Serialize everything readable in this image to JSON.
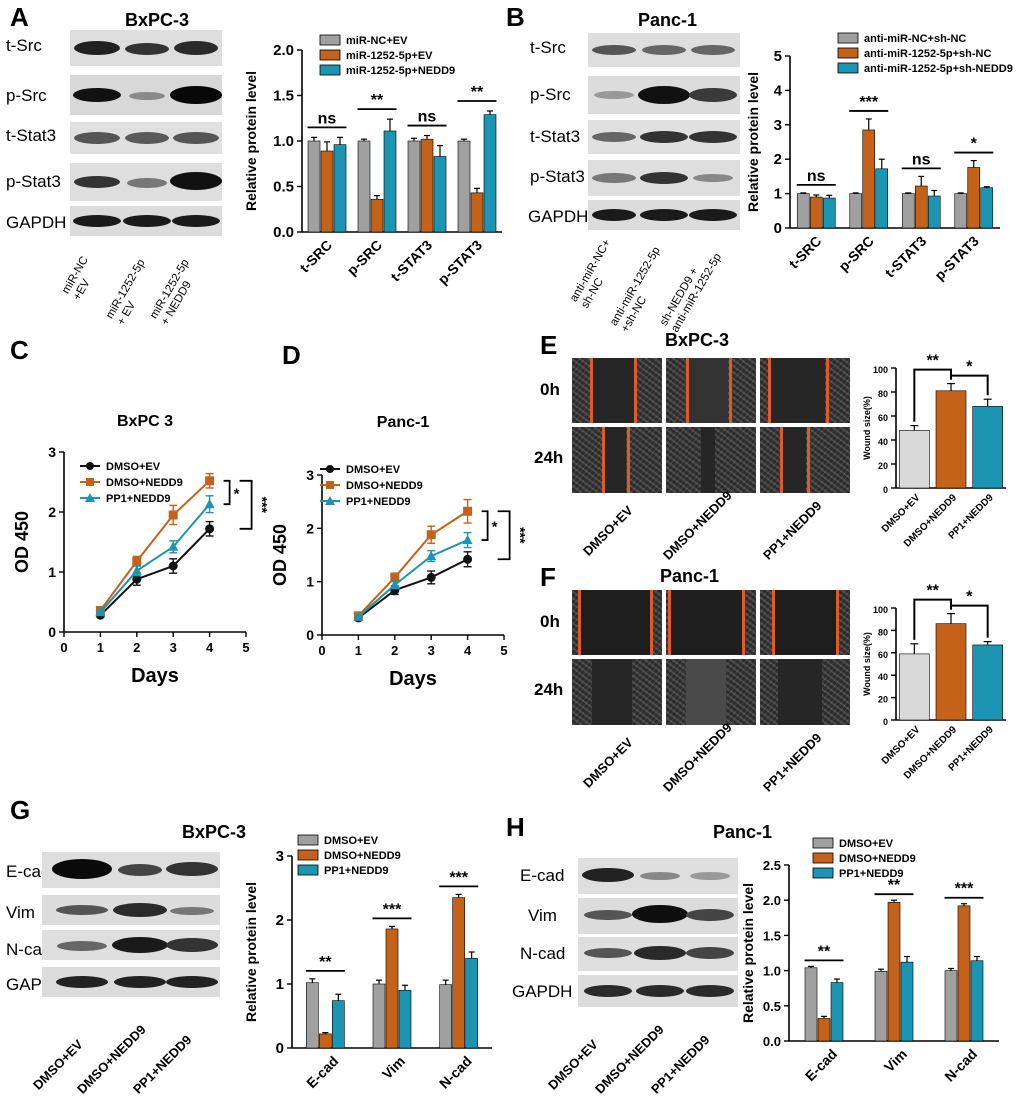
{
  "panels": {
    "A": {
      "letter": "A",
      "title": "BxPC-3",
      "blot_rows": [
        "t-Src",
        "p-Src",
        "t-Stat3",
        "p-Stat3",
        "GAPDH"
      ],
      "lanes": [
        {
          "line1": "miR-NC",
          "line2": "+EV"
        },
        {
          "line1": "miR-1252-5p",
          "line2": "+ EV"
        },
        {
          "line1": "miR-1252-5p",
          "line2": "+ NEDD9"
        }
      ]
    },
    "B": {
      "letter": "B",
      "title": "Panc-1",
      "blot_rows": [
        "t-Src",
        "p-Src",
        "t-Stat3",
        "p-Stat3",
        "GAPDH"
      ],
      "lanes": [
        {
          "line1": "anti-miR-NC+",
          "line2": "sh-NC"
        },
        {
          "line1": "anti-miR-1252-5p",
          "line2": "+sh-NC"
        },
        {
          "line1": "sh-NEDD9 +",
          "line2": "anti-miR-1252-5p"
        }
      ]
    },
    "C": {
      "letter": "C"
    },
    "D": {
      "letter": "D"
    },
    "E": {
      "letter": "E",
      "title": "BxPC-3",
      "rows": [
        "0h",
        "24h"
      ],
      "groups": [
        "DMSO+EV",
        "DMSO+NEDD9",
        "PP1+NEDD9"
      ]
    },
    "F": {
      "letter": "F",
      "title": "Panc-1",
      "rows": [
        "0h",
        "24h"
      ],
      "groups": [
        "DMSO+EV",
        "DMSO+NEDD9",
        "PP1+NEDD9"
      ]
    },
    "G": {
      "letter": "G",
      "title": "BxPC-3",
      "blot_rows": [
        "E-cad",
        "Vim",
        "N-cad",
        "GAPDH"
      ],
      "groups": [
        "DMSO+EV",
        "DMSO+NEDD9",
        "PP1+NEDD9"
      ]
    },
    "H": {
      "letter": "H",
      "title": "Panc-1",
      "blot_rows": [
        "E-cad",
        "Vim",
        "N-cad",
        "GAPDH"
      ],
      "groups": [
        "DMSO+EV",
        "DMSO+NEDD9",
        "PP1+NEDD9"
      ]
    }
  },
  "colors": {
    "grey": "#a0a0a0",
    "orange": "#c4621a",
    "teal": "#1b95b1",
    "black": "#111111",
    "wound_light": "#d9d9d9",
    "edge": "#e0592a"
  },
  "chart_data": [
    {
      "id": "A_bar",
      "type": "bar",
      "title": "",
      "xlabel": "",
      "ylabel": "Relative protein level",
      "ylim": [
        0,
        2.0
      ],
      "yticks": [
        "0.0",
        "0.5",
        "1.0",
        "1.5",
        "2.0"
      ],
      "categories": [
        "t-SRC",
        "p-SRC",
        "t-STAT3",
        "p-STAT3"
      ],
      "series": [
        {
          "name": "miR-NC+EV",
          "color": "#a0a0a0",
          "values": [
            1.0,
            1.0,
            1.0,
            1.0
          ],
          "errors": [
            0.04,
            0.02,
            0.03,
            0.02
          ]
        },
        {
          "name": "miR-1252-5p+EV",
          "color": "#c4621a",
          "values": [
            0.89,
            0.36,
            1.02,
            0.43
          ],
          "errors": [
            0.1,
            0.04,
            0.04,
            0.05
          ]
        },
        {
          "name": "miR-1252-5p+NEDD9",
          "color": "#1b95b1",
          "values": [
            0.96,
            1.11,
            0.83,
            1.29
          ],
          "errors": [
            0.08,
            0.13,
            0.12,
            0.04
          ]
        }
      ],
      "significance": [
        "ns",
        "**",
        "ns",
        "**"
      ],
      "legend_position": "top"
    },
    {
      "id": "B_bar",
      "type": "bar",
      "title": "",
      "xlabel": "",
      "ylabel": "Relative protein level",
      "ylim": [
        0,
        5
      ],
      "yticks": [
        "0",
        "1",
        "2",
        "3",
        "4",
        "5"
      ],
      "categories": [
        "t-SRC",
        "p-SRC",
        "t-STAT3",
        "p-STAT3"
      ],
      "series": [
        {
          "name": "anti-miR-NC+sh-NC",
          "color": "#a0a0a0",
          "values": [
            1.0,
            1.0,
            1.0,
            1.0
          ],
          "errors": [
            0.02,
            0.02,
            0.02,
            0.02
          ]
        },
        {
          "name": "anti-miR-1252-5p+sh-NC",
          "color": "#c4621a",
          "values": [
            0.9,
            2.85,
            1.22,
            1.76
          ],
          "errors": [
            0.06,
            0.32,
            0.28,
            0.2
          ]
        },
        {
          "name": "anti-miR-1252-5p+sh-NEDD9",
          "color": "#1b95b1",
          "values": [
            0.87,
            1.72,
            0.93,
            1.17
          ],
          "errors": [
            0.08,
            0.28,
            0.16,
            0.03
          ]
        }
      ],
      "significance": [
        "ns",
        "***",
        "ns",
        "*"
      ],
      "legend_position": "top"
    },
    {
      "id": "C_line",
      "type": "line",
      "title": "BxPC 3",
      "xlabel": "Days",
      "ylabel": "OD 450",
      "xlim": [
        0,
        5
      ],
      "ylim": [
        0,
        3
      ],
      "xticks": [
        "0",
        "1",
        "2",
        "3",
        "4",
        "5"
      ],
      "yticks": [
        "0",
        "1",
        "2",
        "3"
      ],
      "x": [
        1,
        2,
        3,
        4
      ],
      "series": [
        {
          "name": "DMSO+EV",
          "color": "#111111",
          "marker": "circle",
          "values": [
            0.28,
            0.88,
            1.1,
            1.72
          ],
          "errors": [
            0.03,
            0.1,
            0.12,
            0.12
          ]
        },
        {
          "name": "DMSO+NEDD9",
          "color": "#c4621a",
          "marker": "square",
          "values": [
            0.36,
            1.18,
            1.95,
            2.52
          ],
          "errors": [
            0.04,
            0.08,
            0.16,
            0.12
          ]
        },
        {
          "name": "PP1+NEDD9",
          "color": "#1b95b1",
          "marker": "triangle",
          "values": [
            0.33,
            1.02,
            1.42,
            2.13
          ],
          "errors": [
            0.03,
            0.08,
            0.1,
            0.14
          ]
        }
      ],
      "significance": [
        "*",
        "***"
      ],
      "legend_position": "top-left"
    },
    {
      "id": "D_line",
      "type": "line",
      "title": "Panc-1",
      "xlabel": "Days",
      "ylabel": "OD 450",
      "xlim": [
        0,
        5
      ],
      "ylim": [
        0,
        3
      ],
      "xticks": [
        "0",
        "1",
        "2",
        "3",
        "4",
        "5"
      ],
      "yticks": [
        "0",
        "1",
        "2",
        "3"
      ],
      "x": [
        1,
        2,
        3,
        4
      ],
      "series": [
        {
          "name": "DMSO+EV",
          "color": "#111111",
          "marker": "circle",
          "values": [
            0.32,
            0.84,
            1.08,
            1.42
          ],
          "errors": [
            0.03,
            0.08,
            0.12,
            0.14
          ]
        },
        {
          "name": "DMSO+NEDD9",
          "color": "#c4621a",
          "marker": "square",
          "values": [
            0.36,
            1.08,
            1.88,
            2.32
          ],
          "errors": [
            0.04,
            0.08,
            0.16,
            0.22
          ]
        },
        {
          "name": "PP1+NEDD9",
          "color": "#1b95b1",
          "marker": "triangle",
          "values": [
            0.34,
            0.94,
            1.48,
            1.78
          ],
          "errors": [
            0.03,
            0.07,
            0.1,
            0.14
          ]
        }
      ],
      "significance": [
        "*",
        "***"
      ],
      "legend_position": "top-left"
    },
    {
      "id": "E_bar",
      "type": "bar",
      "title": "",
      "xlabel": "",
      "ylabel": "Wound size(%)",
      "ylim": [
        0,
        100
      ],
      "yticks": [
        "0",
        "20",
        "40",
        "60",
        "80",
        "100"
      ],
      "categories": [
        "DMSO+EV",
        "DMSO+NEDD9",
        "PP1+NEDD9"
      ],
      "colors": [
        "#d9d9d9",
        "#c4621a",
        "#1b95b1"
      ],
      "values": [
        48,
        81,
        68
      ],
      "errors": [
        4,
        6,
        6
      ],
      "significance": [
        "**",
        "*"
      ]
    },
    {
      "id": "F_bar",
      "type": "bar",
      "title": "",
      "xlabel": "",
      "ylabel": "Wound size(%)",
      "ylim": [
        0,
        100
      ],
      "yticks": [
        "0",
        "20",
        "40",
        "60",
        "80",
        "100"
      ],
      "categories": [
        "DMSO+EV",
        "DMSO+NEDD9",
        "PP1+NEDD9"
      ],
      "colors": [
        "#d9d9d9",
        "#c4621a",
        "#1b95b1"
      ],
      "values": [
        59,
        86,
        67
      ],
      "errors": [
        9,
        9,
        3
      ],
      "significance": [
        "**",
        "*"
      ]
    },
    {
      "id": "G_bar",
      "type": "bar",
      "title": "",
      "xlabel": "",
      "ylabel": "Relative protein level",
      "ylim": [
        0,
        3
      ],
      "yticks": [
        "0",
        "1",
        "2",
        "3"
      ],
      "categories": [
        "E-cad",
        "Vim",
        "N-cad"
      ],
      "series": [
        {
          "name": "DMSO+EV",
          "color": "#a0a0a0",
          "values": [
            1.02,
            1.0,
            0.99
          ],
          "errors": [
            0.06,
            0.06,
            0.07
          ]
        },
        {
          "name": "DMSO+NEDD9",
          "color": "#c4621a",
          "values": [
            0.22,
            1.86,
            2.35
          ],
          "errors": [
            0.02,
            0.04,
            0.05
          ]
        },
        {
          "name": "PP1+NEDD9",
          "color": "#1b95b1",
          "values": [
            0.74,
            0.9,
            1.4
          ],
          "errors": [
            0.1,
            0.08,
            0.1
          ]
        }
      ],
      "significance": [
        "**",
        "***",
        "***"
      ],
      "legend_position": "top"
    },
    {
      "id": "H_bar",
      "type": "bar",
      "title": "",
      "xlabel": "",
      "ylabel": "Relative protein level",
      "ylim": [
        0,
        2.5
      ],
      "yticks": [
        "0.0",
        "0.5",
        "1.0",
        "1.5",
        "2.0",
        "2.5"
      ],
      "categories": [
        "E-cad",
        "Vim",
        "N-cad"
      ],
      "series": [
        {
          "name": "DMSO+EV",
          "color": "#a0a0a0",
          "values": [
            1.04,
            0.99,
            1.0
          ],
          "errors": [
            0.02,
            0.03,
            0.03
          ]
        },
        {
          "name": "DMSO+NEDD9",
          "color": "#c4621a",
          "values": [
            0.32,
            1.97,
            1.92
          ],
          "errors": [
            0.03,
            0.03,
            0.03
          ]
        },
        {
          "name": "PP1+NEDD9",
          "color": "#1b95b1",
          "values": [
            0.83,
            1.12,
            1.14
          ],
          "errors": [
            0.05,
            0.08,
            0.06
          ]
        }
      ],
      "significance": [
        "**",
        "**",
        "***"
      ],
      "legend_position": "top"
    }
  ]
}
